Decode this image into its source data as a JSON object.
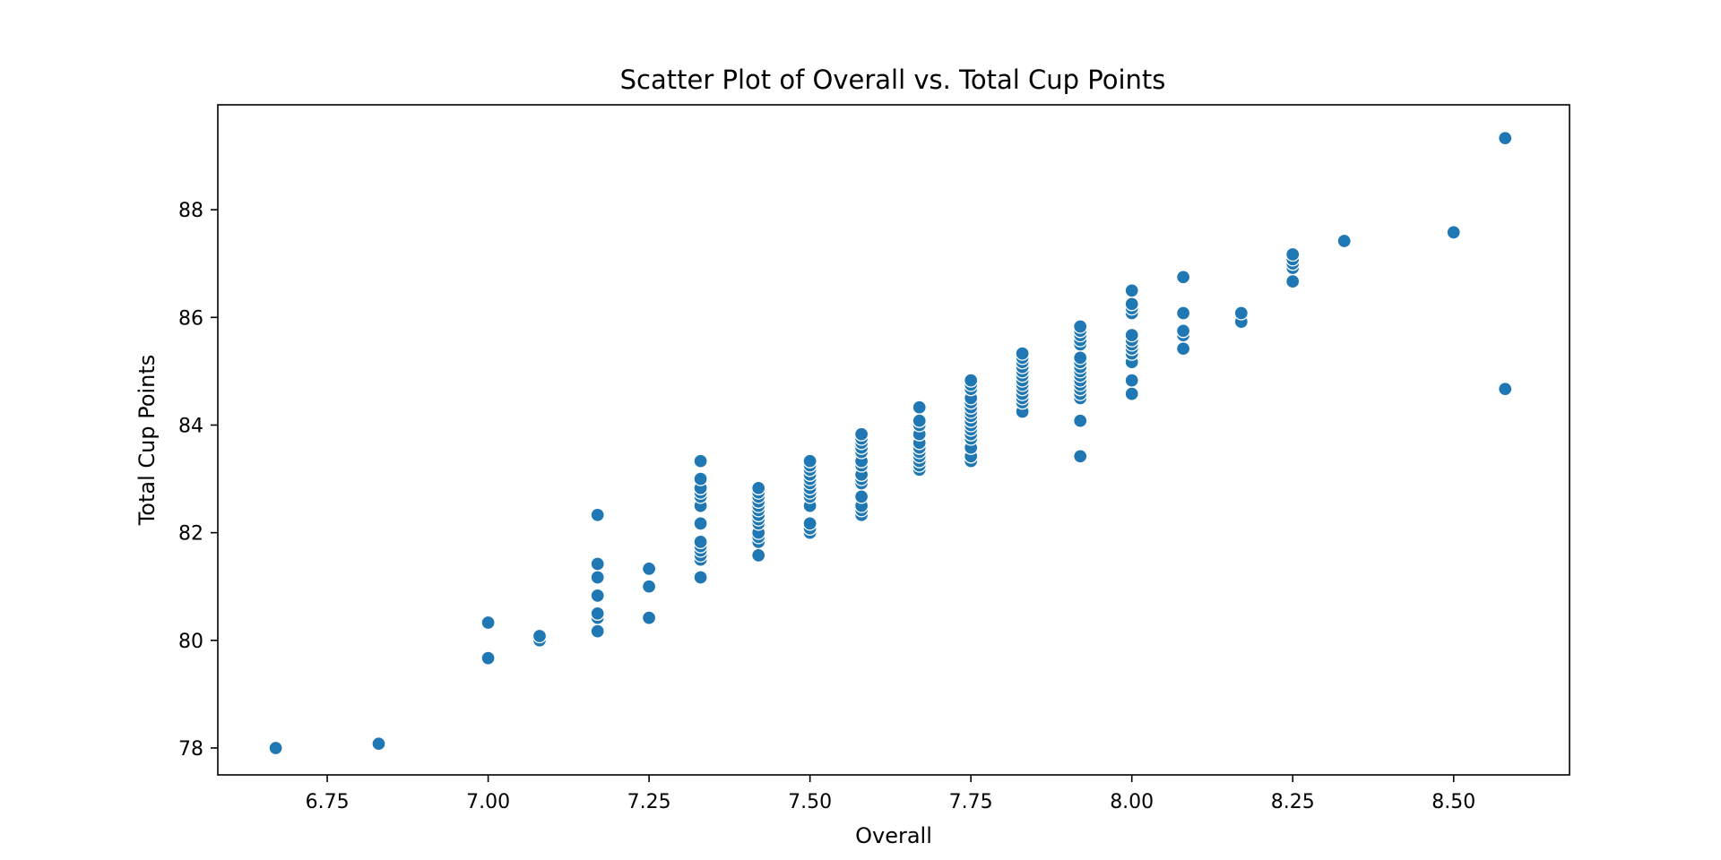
{
  "chart_data": {
    "type": "scatter",
    "title": "Scatter Plot of Overall vs. Total Cup Points",
    "xlabel": "Overall",
    "ylabel": "Total Cup Points",
    "xlim": [
      6.58,
      8.68
    ],
    "ylim": [
      77.5,
      89.95
    ],
    "x_ticks": [
      6.75,
      7.0,
      7.25,
      7.5,
      7.75,
      8.0,
      8.25,
      8.5
    ],
    "x_tick_labels": [
      "6.75",
      "7.00",
      "7.25",
      "7.50",
      "7.75",
      "8.00",
      "8.25",
      "8.50"
    ],
    "y_ticks": [
      78,
      80,
      82,
      84,
      86,
      88
    ],
    "y_tick_labels": [
      "78",
      "80",
      "82",
      "84",
      "86",
      "88"
    ],
    "grid": false,
    "marker_color": "#1f77b4",
    "series": [
      {
        "points": [
          [
            6.67,
            78.0
          ],
          [
            6.83,
            78.08
          ],
          [
            7.0,
            79.67
          ],
          [
            7.0,
            80.33
          ],
          [
            7.08,
            80.0
          ],
          [
            7.08,
            80.08
          ],
          [
            7.17,
            80.17
          ],
          [
            7.17,
            80.42
          ],
          [
            7.17,
            80.5
          ],
          [
            7.17,
            80.83
          ],
          [
            7.17,
            81.17
          ],
          [
            7.17,
            81.42
          ],
          [
            7.17,
            82.33
          ],
          [
            7.25,
            80.42
          ],
          [
            7.25,
            81.0
          ],
          [
            7.25,
            81.33
          ],
          [
            7.33,
            81.17
          ],
          [
            7.33,
            81.5
          ],
          [
            7.33,
            81.58
          ],
          [
            7.33,
            81.67
          ],
          [
            7.33,
            81.75
          ],
          [
            7.33,
            81.83
          ],
          [
            7.33,
            82.17
          ],
          [
            7.33,
            82.5
          ],
          [
            7.33,
            82.67
          ],
          [
            7.33,
            82.75
          ],
          [
            7.33,
            82.83
          ],
          [
            7.33,
            83.0
          ],
          [
            7.33,
            83.33
          ],
          [
            7.42,
            81.58
          ],
          [
            7.42,
            81.83
          ],
          [
            7.42,
            81.92
          ],
          [
            7.42,
            82.0
          ],
          [
            7.42,
            82.17
          ],
          [
            7.42,
            82.25
          ],
          [
            7.42,
            82.33
          ],
          [
            7.42,
            82.42
          ],
          [
            7.42,
            82.5
          ],
          [
            7.42,
            82.58
          ],
          [
            7.42,
            82.67
          ],
          [
            7.42,
            82.75
          ],
          [
            7.42,
            82.83
          ],
          [
            7.5,
            82.0
          ],
          [
            7.5,
            82.08
          ],
          [
            7.5,
            82.17
          ],
          [
            7.5,
            82.5
          ],
          [
            7.5,
            82.67
          ],
          [
            7.5,
            82.75
          ],
          [
            7.5,
            82.83
          ],
          [
            7.5,
            82.92
          ],
          [
            7.5,
            83.0
          ],
          [
            7.5,
            83.08
          ],
          [
            7.5,
            83.17
          ],
          [
            7.5,
            83.25
          ],
          [
            7.5,
            83.33
          ],
          [
            7.58,
            82.33
          ],
          [
            7.58,
            82.42
          ],
          [
            7.58,
            82.5
          ],
          [
            7.58,
            82.67
          ],
          [
            7.58,
            82.92
          ],
          [
            7.58,
            83.0
          ],
          [
            7.58,
            83.08
          ],
          [
            7.58,
            83.25
          ],
          [
            7.58,
            83.33
          ],
          [
            7.58,
            83.5
          ],
          [
            7.58,
            83.58
          ],
          [
            7.58,
            83.67
          ],
          [
            7.58,
            83.75
          ],
          [
            7.58,
            83.83
          ],
          [
            7.67,
            83.17
          ],
          [
            7.67,
            83.25
          ],
          [
            7.67,
            83.33
          ],
          [
            7.67,
            83.42
          ],
          [
            7.67,
            83.5
          ],
          [
            7.67,
            83.58
          ],
          [
            7.67,
            83.67
          ],
          [
            7.67,
            83.83
          ],
          [
            7.67,
            84.0
          ],
          [
            7.67,
            84.08
          ],
          [
            7.67,
            84.33
          ],
          [
            7.75,
            83.33
          ],
          [
            7.75,
            83.42
          ],
          [
            7.75,
            83.58
          ],
          [
            7.75,
            83.75
          ],
          [
            7.75,
            83.83
          ],
          [
            7.75,
            83.92
          ],
          [
            7.75,
            84.0
          ],
          [
            7.75,
            84.08
          ],
          [
            7.75,
            84.17
          ],
          [
            7.75,
            84.25
          ],
          [
            7.75,
            84.33
          ],
          [
            7.75,
            84.42
          ],
          [
            7.75,
            84.5
          ],
          [
            7.75,
            84.67
          ],
          [
            7.75,
            84.75
          ],
          [
            7.75,
            84.83
          ],
          [
            7.83,
            84.25
          ],
          [
            7.83,
            84.42
          ],
          [
            7.83,
            84.5
          ],
          [
            7.83,
            84.58
          ],
          [
            7.83,
            84.67
          ],
          [
            7.83,
            84.75
          ],
          [
            7.83,
            84.83
          ],
          [
            7.83,
            84.92
          ],
          [
            7.83,
            85.0
          ],
          [
            7.83,
            85.08
          ],
          [
            7.83,
            85.17
          ],
          [
            7.83,
            85.25
          ],
          [
            7.83,
            85.33
          ],
          [
            7.92,
            83.42
          ],
          [
            7.92,
            84.08
          ],
          [
            7.92,
            84.5
          ],
          [
            7.92,
            84.58
          ],
          [
            7.92,
            84.67
          ],
          [
            7.92,
            84.75
          ],
          [
            7.92,
            84.83
          ],
          [
            7.92,
            84.92
          ],
          [
            7.92,
            85.0
          ],
          [
            7.92,
            85.08
          ],
          [
            7.92,
            85.17
          ],
          [
            7.92,
            85.25
          ],
          [
            7.92,
            85.5
          ],
          [
            7.92,
            85.58
          ],
          [
            7.92,
            85.67
          ],
          [
            7.92,
            85.75
          ],
          [
            7.92,
            85.83
          ],
          [
            8.0,
            84.58
          ],
          [
            8.0,
            84.83
          ],
          [
            8.0,
            85.17
          ],
          [
            8.0,
            85.33
          ],
          [
            8.0,
            85.42
          ],
          [
            8.0,
            85.5
          ],
          [
            8.0,
            85.58
          ],
          [
            8.0,
            85.67
          ],
          [
            8.0,
            86.08
          ],
          [
            8.0,
            86.17
          ],
          [
            8.0,
            86.25
          ],
          [
            8.0,
            86.5
          ],
          [
            8.08,
            85.42
          ],
          [
            8.08,
            85.67
          ],
          [
            8.08,
            85.75
          ],
          [
            8.08,
            86.08
          ],
          [
            8.08,
            86.75
          ],
          [
            8.17,
            85.92
          ],
          [
            8.17,
            86.08
          ],
          [
            8.25,
            86.67
          ],
          [
            8.25,
            86.92
          ],
          [
            8.25,
            87.0
          ],
          [
            8.25,
            87.08
          ],
          [
            8.25,
            87.17
          ],
          [
            8.33,
            87.42
          ],
          [
            8.5,
            87.58
          ],
          [
            8.58,
            84.67
          ],
          [
            8.58,
            89.33
          ]
        ]
      }
    ]
  }
}
